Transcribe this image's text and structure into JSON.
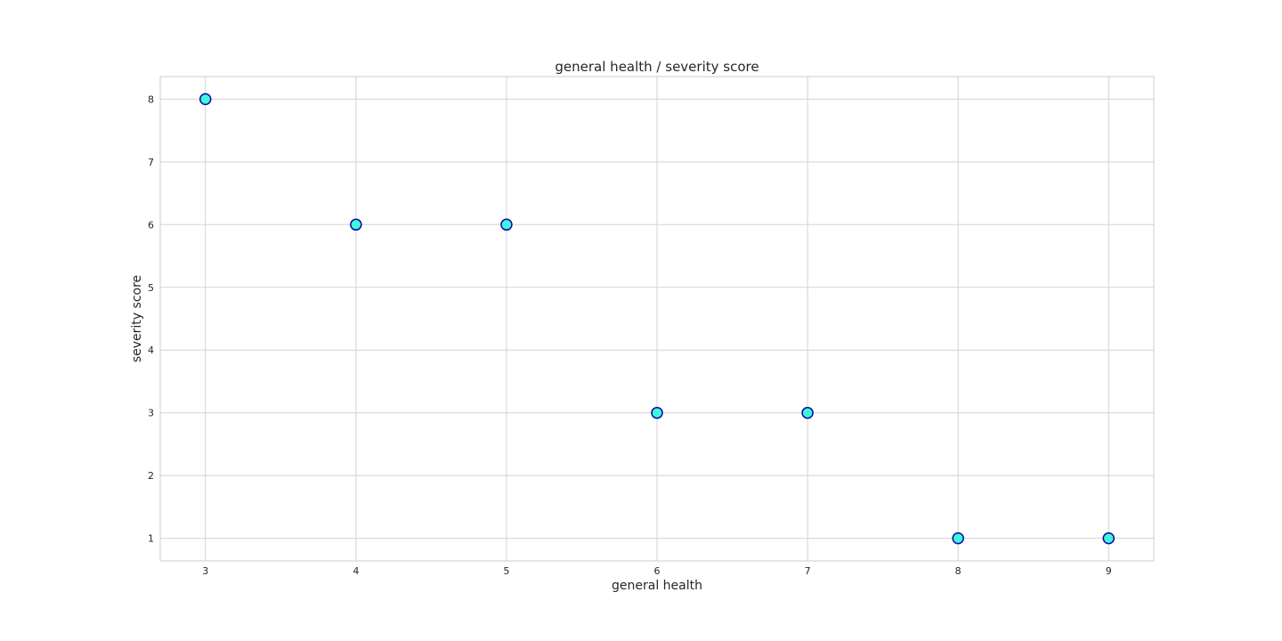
{
  "chart_data": {
    "type": "scatter",
    "title": "general health / severity score",
    "xlabel": "general health",
    "ylabel": "severity score",
    "xlim": [
      2.7,
      9.3
    ],
    "ylim": [
      0.64,
      8.36
    ],
    "xticks": [
      3,
      4,
      5,
      6,
      7,
      8,
      9
    ],
    "yticks": [
      1,
      2,
      3,
      4,
      5,
      6,
      7,
      8
    ],
    "grid": true,
    "points": [
      {
        "x": 3,
        "y": 8
      },
      {
        "x": 4,
        "y": 6
      },
      {
        "x": 5,
        "y": 6
      },
      {
        "x": 6,
        "y": 3
      },
      {
        "x": 7,
        "y": 3
      },
      {
        "x": 8,
        "y": 1
      },
      {
        "x": 9,
        "y": 1
      }
    ],
    "marker_fill": "#40f5d9",
    "marker_edge": "#0a0aa8",
    "grid_color": "#d3d3d3"
  }
}
